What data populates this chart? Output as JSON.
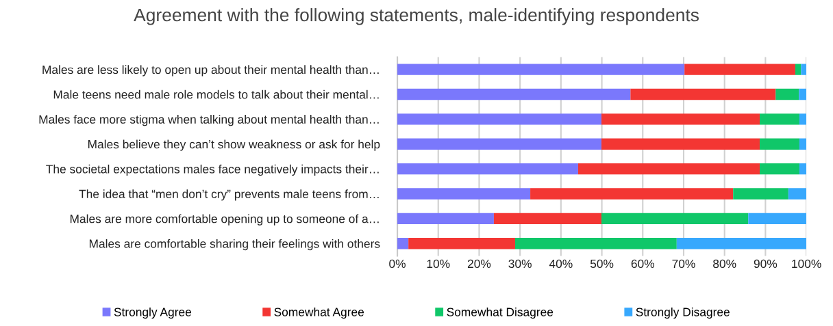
{
  "chart_data": {
    "type": "bar",
    "orientation": "horizontal",
    "stacked": true,
    "title": "Agreement with the following statements, male-identifying respondents",
    "categories": [
      "Males are less likely to open up about their mental health than…",
      "Male teens need male role models to talk about their mental…",
      "Males face more stigma when talking about mental health than…",
      "Males believe they can’t show weakness or ask for help",
      "The societal expectations males face negatively impacts their…",
      "The idea that “men don’t cry” prevents male teens from…",
      "Males are more comfortable opening up to someone of a…",
      "Males are comfortable sharing their feelings with others"
    ],
    "series": [
      {
        "name": "Strongly Agree",
        "color": "#7a78fc",
        "values": [
          70.2,
          57.0,
          49.9,
          49.9,
          44.2,
          32.5,
          23.6,
          2.7
        ]
      },
      {
        "name": "Somewhat Agree",
        "color": "#f33633",
        "values": [
          27.1,
          35.5,
          38.7,
          38.7,
          44.4,
          49.6,
          26.3,
          26.1
        ]
      },
      {
        "name": "Somewhat Disagree",
        "color": "#10c769",
        "values": [
          1.4,
          5.7,
          9.7,
          9.7,
          9.7,
          13.5,
          35.9,
          39.5
        ]
      },
      {
        "name": "Strongly Disagree",
        "color": "#37a8fd",
        "values": [
          1.3,
          1.8,
          1.7,
          1.7,
          1.7,
          4.4,
          14.2,
          31.7
        ]
      }
    ],
    "xlim": [
      0,
      100
    ],
    "xticks": [
      {
        "value": 0,
        "label": "0%"
      },
      {
        "value": 10,
        "label": "10%"
      },
      {
        "value": 20,
        "label": "20%"
      },
      {
        "value": 30,
        "label": "30%"
      },
      {
        "value": 40,
        "label": "40%"
      },
      {
        "value": 50,
        "label": "50%"
      },
      {
        "value": 60,
        "label": "60%"
      },
      {
        "value": 70,
        "label": "70%"
      },
      {
        "value": 80,
        "label": "80%"
      },
      {
        "value": 90,
        "label": "90%"
      },
      {
        "value": 100,
        "label": "100%"
      }
    ],
    "grid": "x",
    "legend": "bottom"
  }
}
